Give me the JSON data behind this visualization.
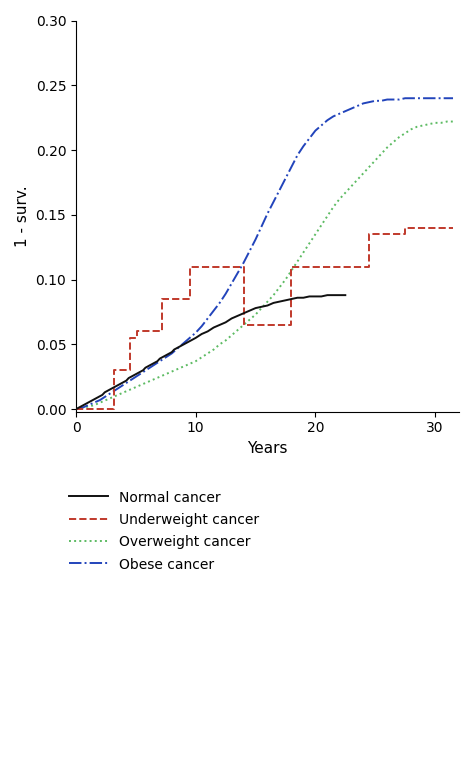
{
  "title": "",
  "xlabel": "Years",
  "ylabel": "1 - surv.",
  "xlim": [
    0,
    32
  ],
  "ylim": [
    -0.002,
    0.3
  ],
  "xticks": [
    0,
    10,
    20,
    30
  ],
  "yticks": [
    0.0,
    0.05,
    0.1,
    0.15,
    0.2,
    0.25,
    0.3
  ],
  "background_color": "#ffffff",
  "normal_color": "#111111",
  "underweight_color": "#c0392b",
  "overweight_color": "#5dbb63",
  "obese_color": "#2244bb",
  "normal_cancer_x": [
    0,
    0.2,
    0.4,
    0.6,
    0.8,
    1.0,
    1.2,
    1.4,
    1.6,
    1.8,
    2.0,
    2.2,
    2.4,
    2.6,
    2.8,
    3.0,
    3.2,
    3.4,
    3.6,
    3.8,
    4.0,
    4.2,
    4.4,
    4.6,
    4.8,
    5.0,
    5.2,
    5.4,
    5.6,
    5.8,
    6.0,
    6.2,
    6.4,
    6.6,
    6.8,
    7.0,
    7.2,
    7.4,
    7.6,
    7.8,
    8.0,
    8.2,
    8.4,
    8.6,
    8.8,
    9.0,
    9.2,
    9.4,
    9.6,
    9.8,
    10.0,
    10.5,
    11.0,
    11.5,
    12.0,
    12.5,
    13.0,
    13.5,
    14.0,
    14.5,
    15.0,
    15.5,
    16.0,
    16.5,
    17.0,
    17.5,
    18.0,
    18.5,
    19.0,
    19.5,
    20.0,
    20.5,
    21.0,
    21.5,
    22.0,
    22.5
  ],
  "normal_cancer_y": [
    0.0,
    0.001,
    0.002,
    0.003,
    0.004,
    0.005,
    0.006,
    0.007,
    0.008,
    0.009,
    0.01,
    0.011,
    0.013,
    0.014,
    0.015,
    0.016,
    0.017,
    0.018,
    0.019,
    0.02,
    0.021,
    0.022,
    0.024,
    0.025,
    0.026,
    0.027,
    0.028,
    0.029,
    0.03,
    0.032,
    0.033,
    0.034,
    0.035,
    0.036,
    0.037,
    0.039,
    0.04,
    0.041,
    0.042,
    0.043,
    0.044,
    0.046,
    0.047,
    0.048,
    0.049,
    0.05,
    0.051,
    0.052,
    0.053,
    0.054,
    0.055,
    0.058,
    0.06,
    0.063,
    0.065,
    0.067,
    0.07,
    0.072,
    0.074,
    0.076,
    0.078,
    0.079,
    0.08,
    0.082,
    0.083,
    0.084,
    0.085,
    0.086,
    0.086,
    0.087,
    0.087,
    0.087,
    0.088,
    0.088,
    0.088,
    0.088
  ],
  "underweight_cancer_x": [
    0,
    0,
    3.2,
    3.2,
    4.5,
    4.5,
    5.1,
    5.1,
    7.2,
    7.2,
    9.5,
    9.5,
    14.0,
    14.0,
    18.0,
    18.0,
    21.5,
    21.5,
    24.5,
    24.5,
    27.5,
    27.5,
    31.5
  ],
  "underweight_cancer_y": [
    0,
    0,
    0.0,
    0.03,
    0.03,
    0.055,
    0.055,
    0.06,
    0.06,
    0.085,
    0.085,
    0.11,
    0.11,
    0.065,
    0.065,
    0.11,
    0.11,
    0.11,
    0.11,
    0.135,
    0.135,
    0.14,
    0.14
  ],
  "overweight_cancer_x": [
    0,
    0.5,
    1.0,
    1.5,
    2.0,
    2.5,
    3.0,
    3.5,
    4.0,
    4.5,
    5.0,
    5.5,
    6.0,
    6.5,
    7.0,
    7.5,
    8.0,
    8.5,
    9.0,
    9.5,
    10.0,
    10.5,
    11.0,
    11.5,
    12.0,
    12.5,
    13.0,
    13.5,
    14.0,
    14.5,
    15.0,
    15.5,
    16.0,
    16.5,
    17.0,
    17.5,
    18.0,
    18.5,
    19.0,
    19.5,
    20.0,
    20.5,
    21.0,
    21.5,
    22.0,
    22.5,
    23.0,
    23.5,
    24.0,
    24.5,
    25.0,
    25.5,
    26.0,
    26.5,
    27.0,
    27.5,
    28.0,
    28.5,
    29.0,
    29.5,
    30.0,
    30.5,
    31.0,
    31.5
  ],
  "overweight_cancer_y": [
    0.0,
    0.001,
    0.002,
    0.003,
    0.005,
    0.007,
    0.009,
    0.011,
    0.013,
    0.015,
    0.017,
    0.019,
    0.021,
    0.023,
    0.025,
    0.027,
    0.029,
    0.031,
    0.033,
    0.035,
    0.037,
    0.04,
    0.043,
    0.046,
    0.05,
    0.053,
    0.057,
    0.061,
    0.065,
    0.069,
    0.073,
    0.078,
    0.083,
    0.088,
    0.094,
    0.1,
    0.107,
    0.114,
    0.121,
    0.128,
    0.135,
    0.142,
    0.149,
    0.156,
    0.162,
    0.167,
    0.172,
    0.177,
    0.182,
    0.187,
    0.192,
    0.197,
    0.202,
    0.206,
    0.21,
    0.213,
    0.216,
    0.218,
    0.219,
    0.22,
    0.221,
    0.221,
    0.222,
    0.222
  ],
  "obese_cancer_x": [
    0,
    0.5,
    1.0,
    1.5,
    2.0,
    2.5,
    3.0,
    3.5,
    4.0,
    4.5,
    5.0,
    5.5,
    6.0,
    6.5,
    7.0,
    7.5,
    8.0,
    8.5,
    9.0,
    9.5,
    10.0,
    10.5,
    11.0,
    11.5,
    12.0,
    12.5,
    13.0,
    13.5,
    14.0,
    14.5,
    15.0,
    15.5,
    16.0,
    16.5,
    17.0,
    17.5,
    18.0,
    18.5,
    19.0,
    19.5,
    20.0,
    20.5,
    21.0,
    21.5,
    22.0,
    22.5,
    23.0,
    23.5,
    24.0,
    24.5,
    25.0,
    25.5,
    26.0,
    26.5,
    27.0,
    27.5,
    28.0,
    28.5,
    29.0,
    29.5,
    30.0,
    30.5,
    31.0,
    31.5
  ],
  "obese_cancer_y": [
    0.0,
    0.001,
    0.003,
    0.005,
    0.007,
    0.01,
    0.013,
    0.016,
    0.019,
    0.022,
    0.025,
    0.028,
    0.031,
    0.034,
    0.037,
    0.04,
    0.043,
    0.047,
    0.051,
    0.055,
    0.059,
    0.064,
    0.07,
    0.076,
    0.082,
    0.089,
    0.097,
    0.105,
    0.113,
    0.122,
    0.131,
    0.141,
    0.151,
    0.16,
    0.169,
    0.178,
    0.187,
    0.196,
    0.203,
    0.209,
    0.215,
    0.219,
    0.223,
    0.226,
    0.228,
    0.23,
    0.232,
    0.234,
    0.236,
    0.237,
    0.238,
    0.238,
    0.239,
    0.239,
    0.239,
    0.24,
    0.24,
    0.24,
    0.24,
    0.24,
    0.24,
    0.24,
    0.24,
    0.24
  ],
  "legend_labels": [
    "Normal cancer",
    "Underweight cancer",
    "Overweight cancer",
    "Obese cancer"
  ],
  "legend_colors": [
    "#111111",
    "#c0392b",
    "#5dbb63",
    "#2244bb"
  ],
  "fontsize_axis_label": 11,
  "fontsize_tick": 10,
  "fontsize_legend": 10
}
